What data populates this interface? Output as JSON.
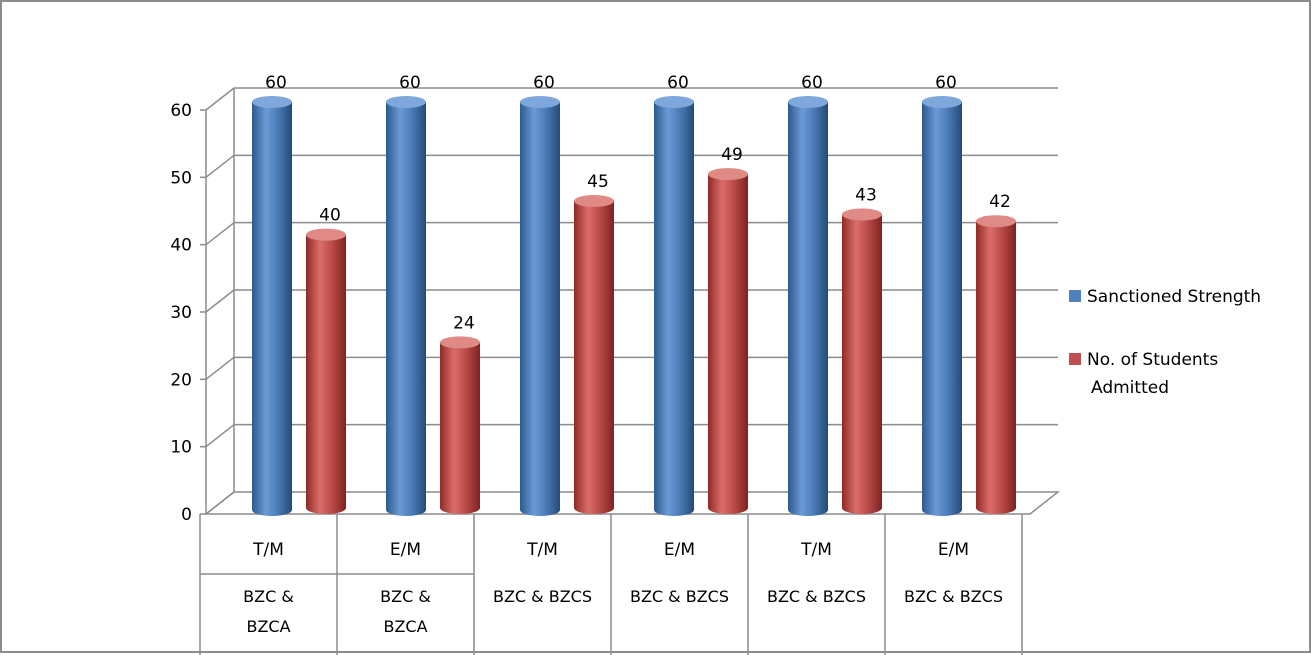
{
  "chart_data": {
    "type": "bar",
    "title": "",
    "xlabel": "",
    "ylabel": "",
    "ylim": [
      0,
      60
    ],
    "y_ticks": [
      0,
      10,
      20,
      30,
      40,
      50,
      60
    ],
    "grid": true,
    "legend_position": "right",
    "categories": [
      {
        "medium": "T/M",
        "group": [
          "BZC &",
          "BZCA"
        ]
      },
      {
        "medium": "E/M",
        "group": [
          "BZC &",
          "BZCA"
        ]
      },
      {
        "medium": "T/M",
        "group": [
          "BZC & BZCS"
        ]
      },
      {
        "medium": "E/M",
        "group": [
          "BZC & BZCS"
        ]
      },
      {
        "medium": "T/M",
        "group": [
          "BZC & BZCS"
        ]
      },
      {
        "medium": "E/M",
        "group": [
          "BZC & BZCS"
        ]
      }
    ],
    "series": [
      {
        "name": "Sanctioned Strength",
        "legend_lines": [
          "Sanctioned Strength"
        ],
        "color": "#4f81bd",
        "values": [
          60,
          60,
          60,
          60,
          60,
          60
        ]
      },
      {
        "name": "No. of Students Admitted",
        "legend_lines": [
          "No. of  Students",
          "Admitted"
        ],
        "color": "#c0504d",
        "values": [
          40,
          24,
          45,
          49,
          43,
          42
        ]
      }
    ]
  }
}
